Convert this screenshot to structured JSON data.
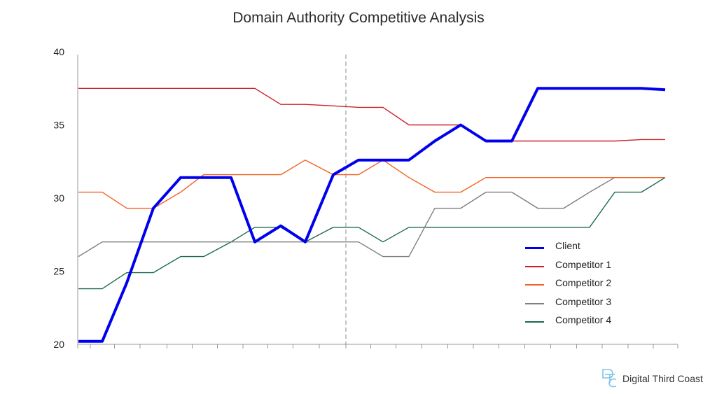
{
  "chart_data": {
    "type": "line",
    "title": "Domain Authority Competitive Analysis",
    "xlabel": "",
    "ylabel": "",
    "ylim": [
      20,
      40
    ],
    "yticks": [
      20,
      25,
      30,
      35,
      40
    ],
    "grid": false,
    "legend": "right",
    "annotations": [
      {
        "type": "vertical-dashed-line",
        "x": 10.5
      }
    ],
    "x": [
      0,
      1,
      2,
      3,
      4,
      5,
      6,
      7,
      8,
      9,
      10,
      11,
      12,
      13,
      14,
      15,
      16,
      17,
      18,
      19,
      20,
      21,
      22,
      23
    ],
    "series": [
      {
        "name": "Client",
        "color": "#0000ee",
        "values": [
          20.2,
          20.2,
          24.2,
          29.3,
          31.4,
          31.4,
          31.4,
          27,
          28.1,
          27,
          31.6,
          32.6,
          32.6,
          32.6,
          33.9,
          35,
          33.9,
          33.9,
          37.5,
          37.5,
          37.5,
          37.5,
          37.5,
          37.4
        ]
      },
      {
        "name": "Competitor 1",
        "color": "#cc2229",
        "values": [
          37.5,
          37.5,
          37.5,
          37.5,
          37.5,
          37.5,
          37.5,
          37.5,
          36.4,
          36.4,
          36.3,
          36.2,
          36.2,
          35,
          35,
          35,
          33.9,
          33.9,
          33.9,
          33.9,
          33.9,
          33.9,
          34,
          34
        ]
      },
      {
        "name": "Competitor 2",
        "color": "#f26122",
        "values": [
          30.4,
          30.4,
          29.3,
          29.3,
          30.4,
          31.6,
          31.6,
          31.6,
          31.6,
          32.6,
          31.6,
          31.6,
          32.6,
          31.4,
          30.4,
          30.4,
          31.4,
          31.4,
          31.4,
          31.4,
          31.4,
          31.4,
          31.4,
          31.4
        ]
      },
      {
        "name": "Competitor 3",
        "color": "#7f7f7f",
        "values": [
          26,
          27,
          27,
          27,
          27,
          27,
          27,
          27,
          27,
          27,
          27,
          27,
          26,
          26,
          29.3,
          29.3,
          30.4,
          30.4,
          29.3,
          29.3,
          30.4,
          31.4,
          31.4,
          31.4
        ]
      },
      {
        "name": "Competitor 4",
        "color": "#1a6b4b",
        "values": [
          23.8,
          23.8,
          24.9,
          24.9,
          26,
          26,
          27,
          28,
          28,
          27,
          28,
          28,
          27,
          28,
          28,
          28,
          28,
          28,
          28,
          28,
          28,
          30.4,
          30.4,
          31.4
        ]
      }
    ]
  },
  "brand": {
    "name": "Digital Third Coast",
    "logo_icon": "dtc-monogram-icon",
    "logo_color": "#7cc4e8"
  }
}
